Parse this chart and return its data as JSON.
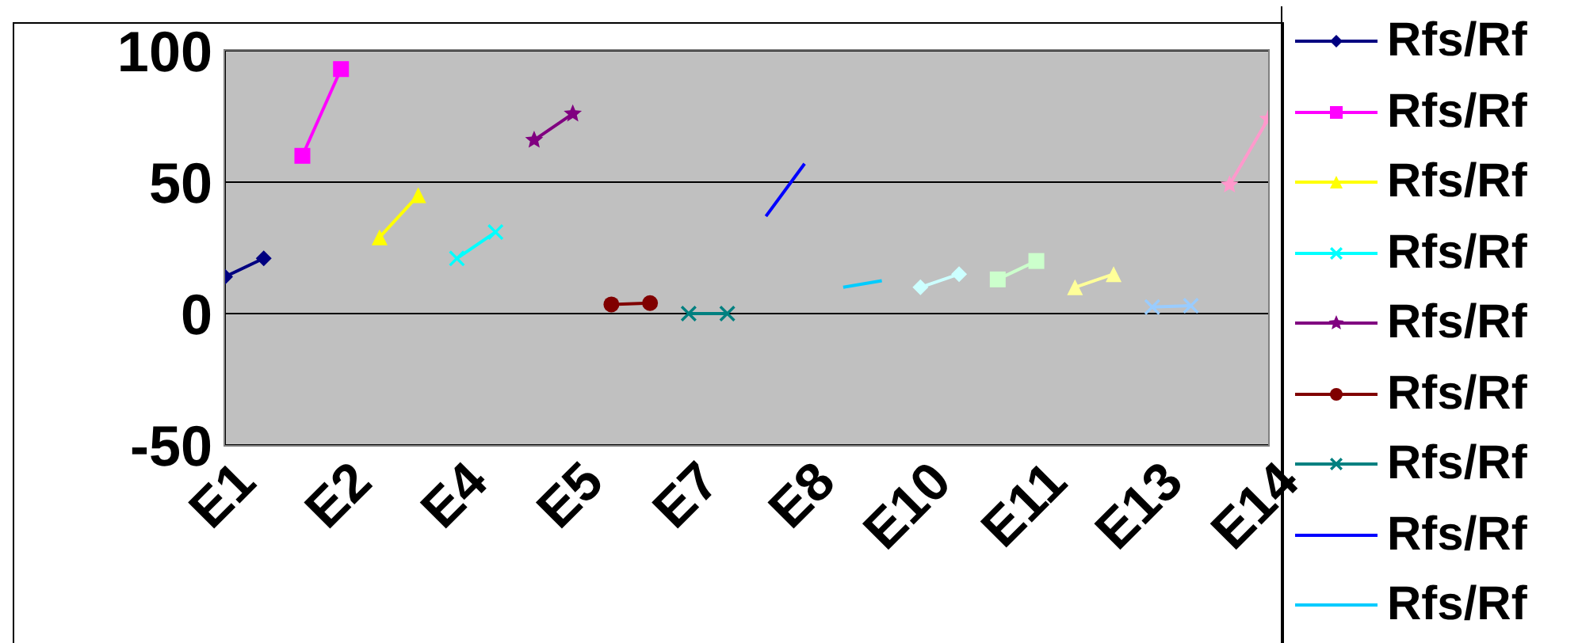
{
  "chart_data": {
    "type": "line",
    "categories": [
      "E1",
      null,
      null,
      "E2",
      null,
      null,
      "E4",
      null,
      null,
      "E5",
      null,
      null,
      "E7",
      null,
      null,
      "E8",
      null,
      null,
      "E10",
      null,
      null,
      "E11",
      null,
      null,
      "E13",
      null,
      null,
      "E14"
    ],
    "ylim": [
      -50,
      100
    ],
    "yticks": [
      -50,
      0,
      50,
      100
    ],
    "grid": "y",
    "legend": "right",
    "series": [
      {
        "name": "Rfs/Rf",
        "color": "#000080",
        "marker": "diamond",
        "values": [
          14,
          21,
          null,
          null,
          null,
          null,
          null,
          null,
          null,
          null,
          null,
          null,
          null,
          null,
          null,
          null,
          null,
          null,
          null,
          null,
          null,
          null,
          null,
          null,
          null,
          null,
          null,
          null
        ]
      },
      {
        "name": "Rfs/Rf",
        "color": "#ff00ff",
        "marker": "square",
        "values": [
          null,
          null,
          60,
          93,
          null,
          null,
          null,
          null,
          null,
          null,
          null,
          null,
          null,
          null,
          null,
          null,
          null,
          null,
          null,
          null,
          null,
          null,
          null,
          null,
          null,
          null,
          null,
          null
        ]
      },
      {
        "name": "Rfs/Rf",
        "color": "#ffff00",
        "marker": "triangle",
        "values": [
          null,
          null,
          null,
          null,
          29,
          45,
          null,
          null,
          null,
          null,
          null,
          null,
          null,
          null,
          null,
          null,
          null,
          null,
          null,
          null,
          null,
          null,
          null,
          null,
          null,
          null,
          null,
          null
        ]
      },
      {
        "name": "Rfs/Rf",
        "color": "#00ffff",
        "marker": "cross",
        "values": [
          null,
          null,
          null,
          null,
          null,
          null,
          21,
          31,
          null,
          null,
          null,
          null,
          null,
          null,
          null,
          null,
          null,
          null,
          null,
          null,
          null,
          null,
          null,
          null,
          null,
          null,
          null,
          null
        ]
      },
      {
        "name": "Rfs/Rf",
        "color": "#800080",
        "marker": "star",
        "values": [
          null,
          null,
          null,
          null,
          null,
          null,
          null,
          null,
          66,
          76,
          null,
          null,
          null,
          null,
          null,
          null,
          null,
          null,
          null,
          null,
          null,
          null,
          null,
          null,
          null,
          null,
          null,
          null
        ]
      },
      {
        "name": "Rfs/Rf",
        "color": "#800000",
        "marker": "circle",
        "values": [
          null,
          null,
          null,
          null,
          null,
          null,
          null,
          null,
          null,
          null,
          3.5,
          4,
          null,
          null,
          null,
          null,
          null,
          null,
          null,
          null,
          null,
          null,
          null,
          null,
          null,
          null,
          null,
          null
        ]
      },
      {
        "name": "Rfs/Rf",
        "color": "#008080",
        "marker": "cross",
        "values": [
          null,
          null,
          null,
          null,
          null,
          null,
          null,
          null,
          null,
          null,
          null,
          null,
          0,
          0,
          null,
          null,
          null,
          null,
          null,
          null,
          null,
          null,
          null,
          null,
          null,
          null,
          null,
          null
        ]
      },
      {
        "name": "Rfs/Rf",
        "color": "#0000ff",
        "marker": "none",
        "values": [
          null,
          null,
          null,
          null,
          null,
          null,
          null,
          null,
          null,
          null,
          null,
          null,
          null,
          null,
          37,
          57,
          null,
          null,
          null,
          null,
          null,
          null,
          null,
          null,
          null,
          null,
          null,
          null
        ]
      },
      {
        "name": "Rfs/Rf",
        "color": "#00ccff",
        "marker": "none",
        "values": [
          null,
          null,
          null,
          null,
          null,
          null,
          null,
          null,
          null,
          null,
          null,
          null,
          null,
          null,
          null,
          null,
          10,
          12.5,
          null,
          null,
          null,
          null,
          null,
          null,
          null,
          null,
          null,
          null
        ]
      },
      {
        "color": "#ccffff",
        "marker": "diamond",
        "values": [
          null,
          null,
          null,
          null,
          null,
          null,
          null,
          null,
          null,
          null,
          null,
          null,
          null,
          null,
          null,
          null,
          null,
          null,
          10,
          15,
          null,
          null,
          null,
          null,
          null,
          null,
          null,
          null
        ]
      },
      {
        "color": "#ccffcc",
        "marker": "square",
        "values": [
          null,
          null,
          null,
          null,
          null,
          null,
          null,
          null,
          null,
          null,
          null,
          null,
          null,
          null,
          null,
          null,
          null,
          null,
          null,
          null,
          13,
          20,
          null,
          null,
          null,
          null,
          null,
          null
        ]
      },
      {
        "color": "#ffff99",
        "marker": "triangle",
        "values": [
          null,
          null,
          null,
          null,
          null,
          null,
          null,
          null,
          null,
          null,
          null,
          null,
          null,
          null,
          null,
          null,
          null,
          null,
          null,
          null,
          null,
          null,
          10,
          15,
          null,
          null,
          null,
          null
        ]
      },
      {
        "color": "#99ccff",
        "marker": "cross",
        "values": [
          null,
          null,
          null,
          null,
          null,
          null,
          null,
          null,
          null,
          null,
          null,
          null,
          null,
          null,
          null,
          null,
          null,
          null,
          null,
          null,
          null,
          null,
          null,
          null,
          2.5,
          3,
          null,
          null
        ]
      },
      {
        "color": "#ff99cc",
        "marker": "star",
        "values": [
          null,
          null,
          null,
          null,
          null,
          null,
          null,
          null,
          null,
          null,
          null,
          null,
          null,
          null,
          null,
          null,
          null,
          null,
          null,
          null,
          null,
          null,
          null,
          null,
          null,
          null,
          49,
          74
        ]
      }
    ]
  }
}
